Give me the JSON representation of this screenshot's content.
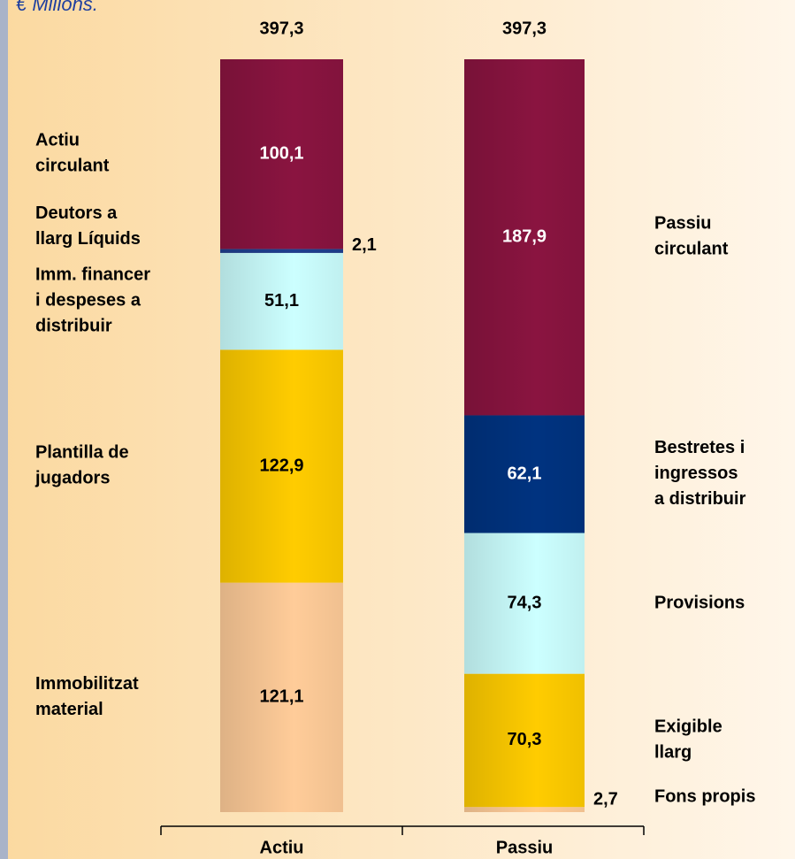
{
  "chart_data": {
    "type": "stacked_bar",
    "title": "€ Milions.",
    "categories": [
      "Actiu",
      "Passiu"
    ],
    "totals": {
      "values": [
        397.3,
        397.3
      ],
      "labels": [
        "397,3",
        "397,3"
      ]
    },
    "stacks": [
      {
        "segments": [
          {
            "name": "Immobilitzat\nmaterial",
            "value": 121.1,
            "value_label": "121,1",
            "color": "#ffcc99"
          },
          {
            "name": "Plantilla de\njugadors",
            "value": 122.9,
            "value_label": "122,9",
            "color": "#ffcc00"
          },
          {
            "name": "Imm. financer\ni despeses a\ndistribuir",
            "value": 51.1,
            "value_label": "51,1",
            "color": "#ccffff"
          },
          {
            "name": "Deutors a\nllarg Líquids",
            "value": 2.1,
            "value_label": "2,1",
            "color": "#1f3f8f"
          },
          {
            "name": "Actiu\ncirculant",
            "value": 100.1,
            "value_label": "100,1",
            "color": "#8a1440"
          }
        ]
      },
      {
        "segments": [
          {
            "name": "Fons propis",
            "value": 2.7,
            "value_label": "2,7",
            "color": "#ffcc99"
          },
          {
            "name": "Exigible\nllarg",
            "value": 70.3,
            "value_label": "70,3",
            "color": "#ffcc00"
          },
          {
            "name": "Provisions",
            "value": 74.3,
            "value_label": "74,3",
            "color": "#ccffff"
          },
          {
            "name": "Bestretes i\ningressos\na distribuir",
            "value": 62.1,
            "value_label": "62,1",
            "color": "#003380"
          },
          {
            "name": "Passiu\ncirculant",
            "value": 187.9,
            "value_label": "187,9",
            "color": "#8a1440"
          }
        ]
      }
    ]
  }
}
